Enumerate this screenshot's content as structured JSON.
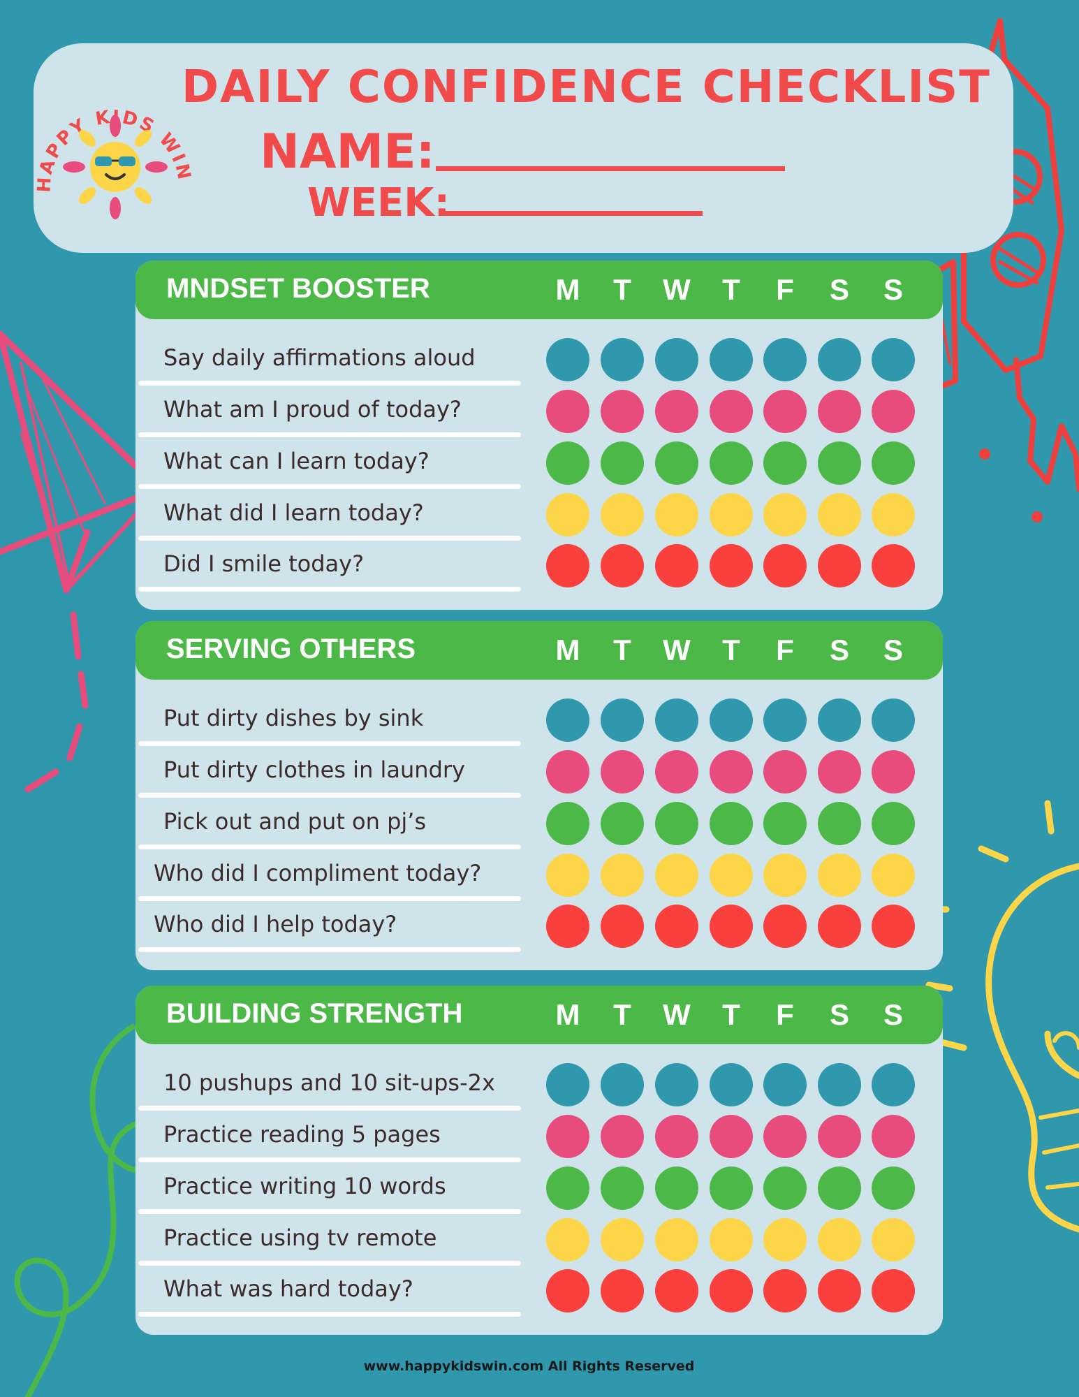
{
  "header": {
    "logo_text": "HAPPY KIDS WIN!",
    "title": "DAILY CONFIDENCE CHECKLIST",
    "name_label": "NAME:",
    "week_label": "WEEK:"
  },
  "colors": {
    "background": "#2f98ad",
    "panel": "#cfe4ea",
    "bar": "#4cb848",
    "title": "#f04a4a",
    "row_colors": [
      "#2f98ad",
      "#e84c7d",
      "#4cb848",
      "#fdd548",
      "#f9403d"
    ]
  },
  "days": [
    "M",
    "T",
    "W",
    "T",
    "F",
    "S",
    "S"
  ],
  "sections": [
    {
      "title": "MNDSET BOOSTER",
      "items": [
        "Say daily affirmations aloud",
        "What am I proud of today?",
        "What can I learn today?",
        "What did I learn today?",
        "Did I smile today?"
      ]
    },
    {
      "title": "SERVING OTHERS",
      "items": [
        "Put dirty dishes by sink",
        "Put dirty clothes in laundry",
        "Pick out and put on pj’s",
        "Who did I compliment today?",
        "Who did I help today?"
      ]
    },
    {
      "title": "BUILDING STRENGTH",
      "items": [
        "10 pushups and 10 sit-ups-2x",
        "Practice reading 5 pages",
        "Practice writing 10 words",
        "Practice using tv remote",
        "What was hard today?"
      ]
    }
  ],
  "footer": "www.happykidswin.com  All Rights Reserved"
}
